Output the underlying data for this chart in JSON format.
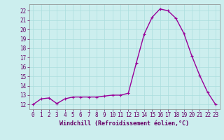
{
  "x": [
    0,
    1,
    2,
    3,
    4,
    5,
    6,
    7,
    8,
    9,
    10,
    11,
    12,
    13,
    14,
    15,
    16,
    17,
    18,
    19,
    20,
    21,
    22,
    23
  ],
  "y": [
    12.0,
    12.6,
    12.7,
    12.1,
    12.6,
    12.8,
    12.8,
    12.8,
    12.8,
    12.9,
    13.0,
    13.0,
    13.2,
    16.4,
    19.5,
    21.3,
    22.2,
    22.0,
    21.2,
    19.6,
    17.2,
    15.1,
    13.3,
    12.0
  ],
  "line_color": "#990099",
  "marker": "+",
  "marker_size": 3,
  "marker_linewidth": 0.8,
  "bg_color": "#cceeee",
  "grid_color": "#aadddd",
  "xlabel": "Windchill (Refroidissement éolien,°C)",
  "xlabel_color": "#660066",
  "tick_color": "#660066",
  "ylim": [
    11.5,
    22.7
  ],
  "xlim": [
    -0.5,
    23.5
  ],
  "yticks": [
    12,
    13,
    14,
    15,
    16,
    17,
    18,
    19,
    20,
    21,
    22
  ],
  "xticks": [
    0,
    1,
    2,
    3,
    4,
    5,
    6,
    7,
    8,
    9,
    10,
    11,
    12,
    13,
    14,
    15,
    16,
    17,
    18,
    19,
    20,
    21,
    22,
    23
  ],
  "line_width": 1.0,
  "tick_fontsize": 5.5,
  "xlabel_fontsize": 6.0
}
